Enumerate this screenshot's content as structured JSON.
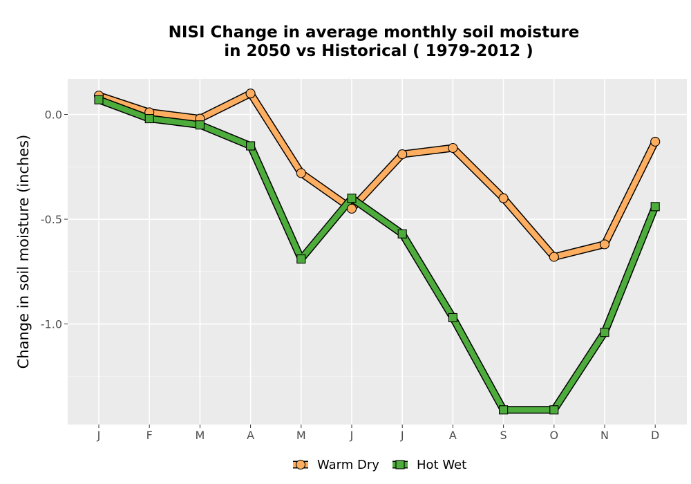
{
  "chart_data": {
    "type": "line",
    "title_lines": [
      "NISI  Change in average monthly soil moisture",
      "in 2050 vs Historical ( 1979-2012 )"
    ],
    "xlabel": "",
    "ylabel": "Change in soil moisture (inches)",
    "categories": [
      "J",
      "F",
      "M",
      "A",
      "M",
      "J",
      "J",
      "A",
      "S",
      "O",
      "N",
      "D"
    ],
    "y_ticks": [
      0.0,
      -0.5,
      -1.0
    ],
    "y_tick_labels": [
      "0.0",
      "-0.5",
      "-1.0"
    ],
    "ylim": [
      -1.48,
      0.17
    ],
    "grid": true,
    "legend_position": "bottom",
    "series": [
      {
        "name": "Warm Dry",
        "color": "#FDAE61",
        "marker": "circle",
        "values": [
          0.09,
          0.01,
          -0.02,
          0.1,
          -0.28,
          -0.45,
          -0.19,
          -0.16,
          -0.4,
          -0.68,
          -0.62,
          -0.13
        ]
      },
      {
        "name": "Hot Wet",
        "color": "#4DAC3C",
        "marker": "square",
        "values": [
          0.07,
          -0.02,
          -0.05,
          -0.15,
          -0.69,
          -0.4,
          -0.57,
          -0.97,
          -1.41,
          -1.41,
          -1.04,
          -0.44
        ]
      }
    ]
  }
}
